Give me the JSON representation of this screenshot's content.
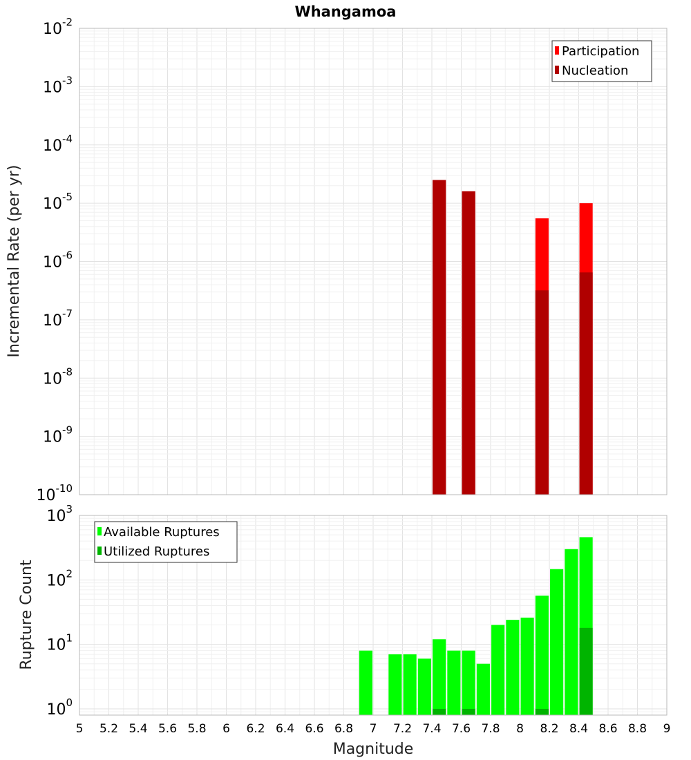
{
  "title": "Whangamoa",
  "xlabel": "Magnitude",
  "x_ticks": [
    "5",
    "5.2",
    "5.4",
    "5.6",
    "5.8",
    "6",
    "6.2",
    "6.4",
    "6.6",
    "6.8",
    "7",
    "7.2",
    "7.4",
    "7.6",
    "7.8",
    "8",
    "8.2",
    "8.4",
    "8.6",
    "8.8",
    "9"
  ],
  "chart_data": [
    {
      "type": "bar",
      "ylabel": "Incremental Rate (per yr)",
      "y_scale": "log",
      "xlim": [
        5,
        9
      ],
      "ylim": [
        1e-10,
        0.01
      ],
      "y_ticks": [
        "10^-10",
        "10^-9",
        "10^-8",
        "10^-7",
        "10^-6",
        "10^-5",
        "10^-4",
        "10^-3",
        "10^-2"
      ],
      "legend_position": "top-right",
      "grid": true,
      "bar_width": 0.09,
      "x": [
        7.45,
        7.65,
        8.15,
        8.45
      ],
      "series": [
        {
          "name": "Participation",
          "color": "#ff0000",
          "values": [
            2.5e-05,
            1.6e-05,
            5.5e-06,
            1e-05
          ]
        },
        {
          "name": "Nucleation",
          "color": "#b00000",
          "values": [
            2.5e-05,
            1.6e-05,
            3.2e-07,
            6.5e-07
          ]
        }
      ]
    },
    {
      "type": "bar",
      "ylabel": "Rupture Count",
      "y_scale": "log",
      "xlim": [
        5,
        9
      ],
      "ylim": [
        0.8,
        1000
      ],
      "y_ticks": [
        "10^0",
        "10^1",
        "10^2",
        "10^3"
      ],
      "legend_position": "top-left",
      "grid": true,
      "bar_width": 0.09,
      "x": [
        6.95,
        7.15,
        7.25,
        7.35,
        7.45,
        7.55,
        7.65,
        7.75,
        7.85,
        7.95,
        8.05,
        8.15,
        8.25,
        8.35,
        8.45
      ],
      "series": [
        {
          "name": "Available Ruptures",
          "color": "#00ff00",
          "values": [
            8,
            7,
            7,
            6,
            12,
            8,
            8,
            5,
            20,
            24,
            26,
            57,
            147,
            300,
            460
          ]
        },
        {
          "name": "Utilized Ruptures",
          "color": "#00b400",
          "values": [
            0,
            0,
            0,
            0,
            1,
            0,
            1,
            0,
            0,
            0,
            0,
            1,
            0,
            0,
            18
          ]
        }
      ]
    }
  ]
}
